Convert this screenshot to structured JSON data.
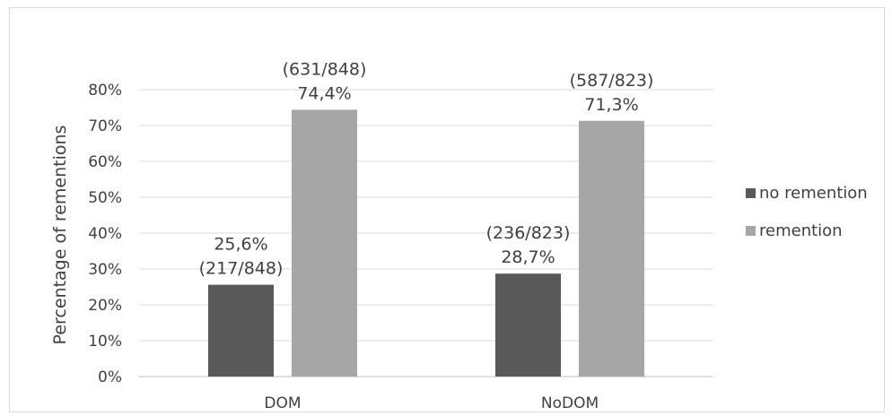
{
  "chart_data": {
    "type": "bar",
    "categories": [
      "DOM",
      "NoDOM"
    ],
    "series": [
      {
        "name": "no remention",
        "color": "#595959",
        "values": [
          25.6,
          28.7
        ],
        "labels": [
          [
            "25,6%",
            "(217/848)"
          ],
          [
            "(236/823)",
            "28,7%"
          ]
        ]
      },
      {
        "name": "remention",
        "color": "#a6a6a6",
        "values": [
          74.4,
          71.3
        ],
        "labels": [
          [
            "(631/848)",
            "74,4%"
          ],
          [
            "(587/823)",
            "71,3%"
          ]
        ]
      }
    ],
    "ylabel": "Percentage of rementions",
    "ylim": [
      0,
      80
    ],
    "yticks": [
      "0%",
      "10%",
      "20%",
      "30%",
      "40%",
      "50%",
      "60%",
      "70%",
      "80%"
    ],
    "grid": true,
    "legend_position": "right"
  }
}
